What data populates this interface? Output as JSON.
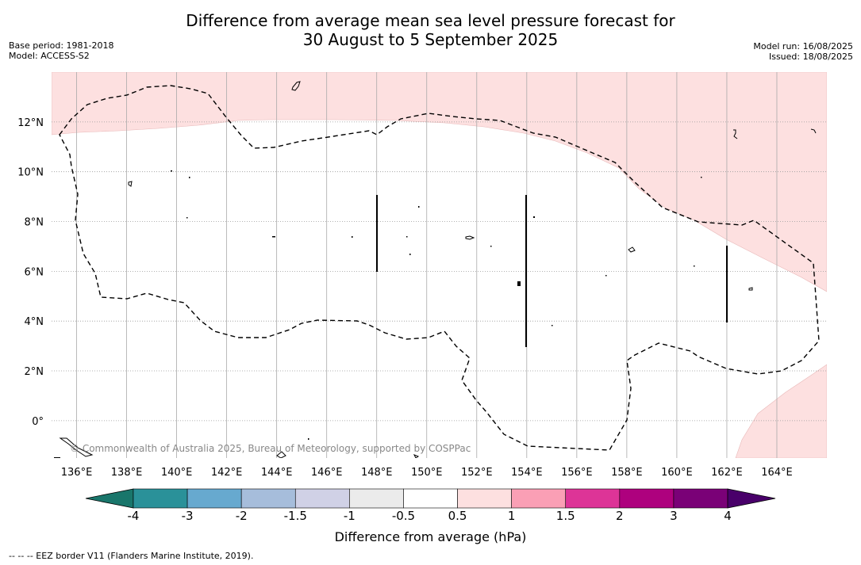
{
  "title_line1": "Difference from average mean sea level pressure forecast for",
  "title_line2": "30 August to 5 September 2025",
  "meta_left": {
    "base_period": "Base period: 1981-2018",
    "model": "Model: ACCESS-S2"
  },
  "meta_right": {
    "model_run": "Model run: 16/08/2025",
    "issued": "Issued: 18/08/2025"
  },
  "map": {
    "lon_range": [
      135,
      166
    ],
    "lat_range": [
      -1.5,
      14
    ],
    "lon_ticks": [
      "136°E",
      "138°E",
      "140°E",
      "142°E",
      "144°E",
      "146°E",
      "148°E",
      "150°E",
      "152°E",
      "154°E",
      "156°E",
      "158°E",
      "160°E",
      "162°E",
      "164°E"
    ],
    "lat_ticks": [
      "12°N",
      "10°N",
      "8°N",
      "6°N",
      "4°N",
      "2°N",
      "0°"
    ],
    "copyright": "© Commonwealth of Australia 2025, Bureau of Meteorology, supported by COSPPac",
    "shaded_category": "0.5 to 1 hPa",
    "shaded_color": "#fde0e0"
  },
  "colorbar": {
    "title": "Difference from average (hPa)",
    "tick_labels": [
      "-4",
      "-3",
      "-2",
      "-1.5",
      "-1",
      "-0.5",
      "0.5",
      "1",
      "1.5",
      "2",
      "3",
      "4"
    ],
    "colors": [
      "#19766b",
      "#2a9199",
      "#67a9cf",
      "#a6bddb",
      "#d0d1e6",
      "#ebebeb",
      "#ffffff",
      "#fde0e0",
      "#fa9fb5",
      "#dd3497",
      "#ae017e",
      "#7a0177",
      "#49006a"
    ]
  },
  "footnote": "--  --  -- EEZ border V11 (Flanders Marine Institute, 2019)."
}
